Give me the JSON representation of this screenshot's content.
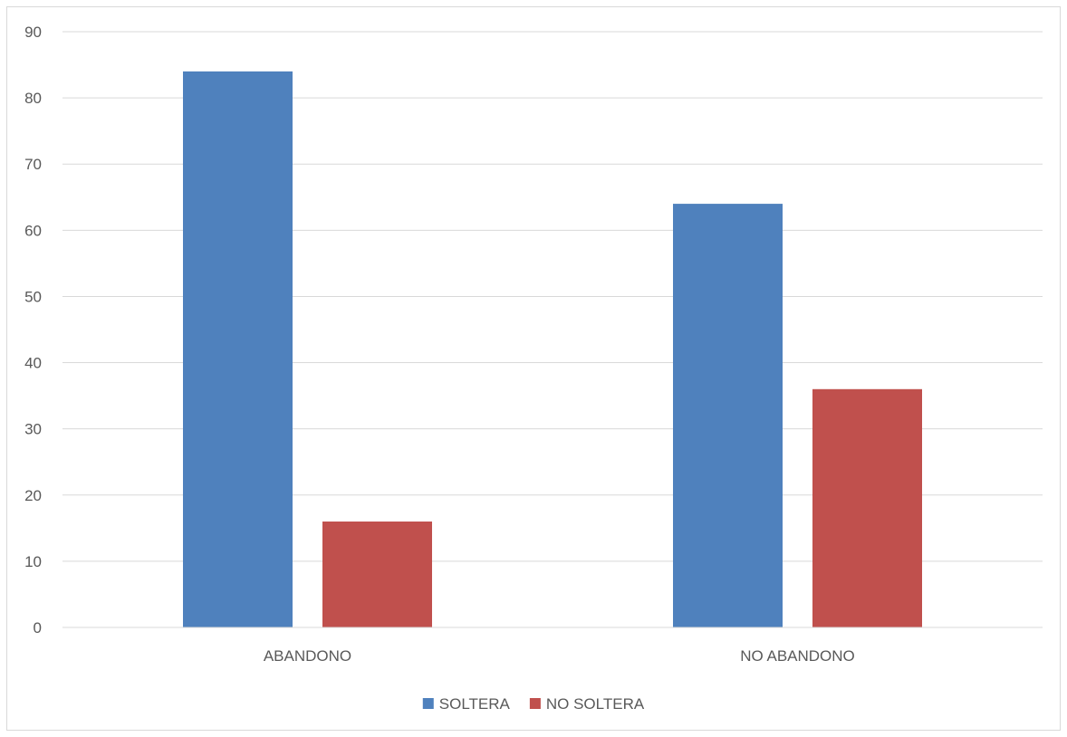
{
  "chart_data": {
    "type": "bar",
    "categories": [
      "ABANDONO",
      "NO ABANDONO"
    ],
    "series": [
      {
        "name": "SOLTERA",
        "values": [
          84,
          64
        ],
        "color": "#4f81bd"
      },
      {
        "name": "NO SOLTERA",
        "values": [
          16,
          36
        ],
        "color": "#c0504d"
      }
    ],
    "ylim": [
      0,
      90
    ],
    "yticks": [
      0,
      10,
      20,
      30,
      40,
      50,
      60,
      70,
      80,
      90
    ],
    "grid": true,
    "legend_position": "bottom",
    "title": "",
    "xlabel": "",
    "ylabel": ""
  }
}
